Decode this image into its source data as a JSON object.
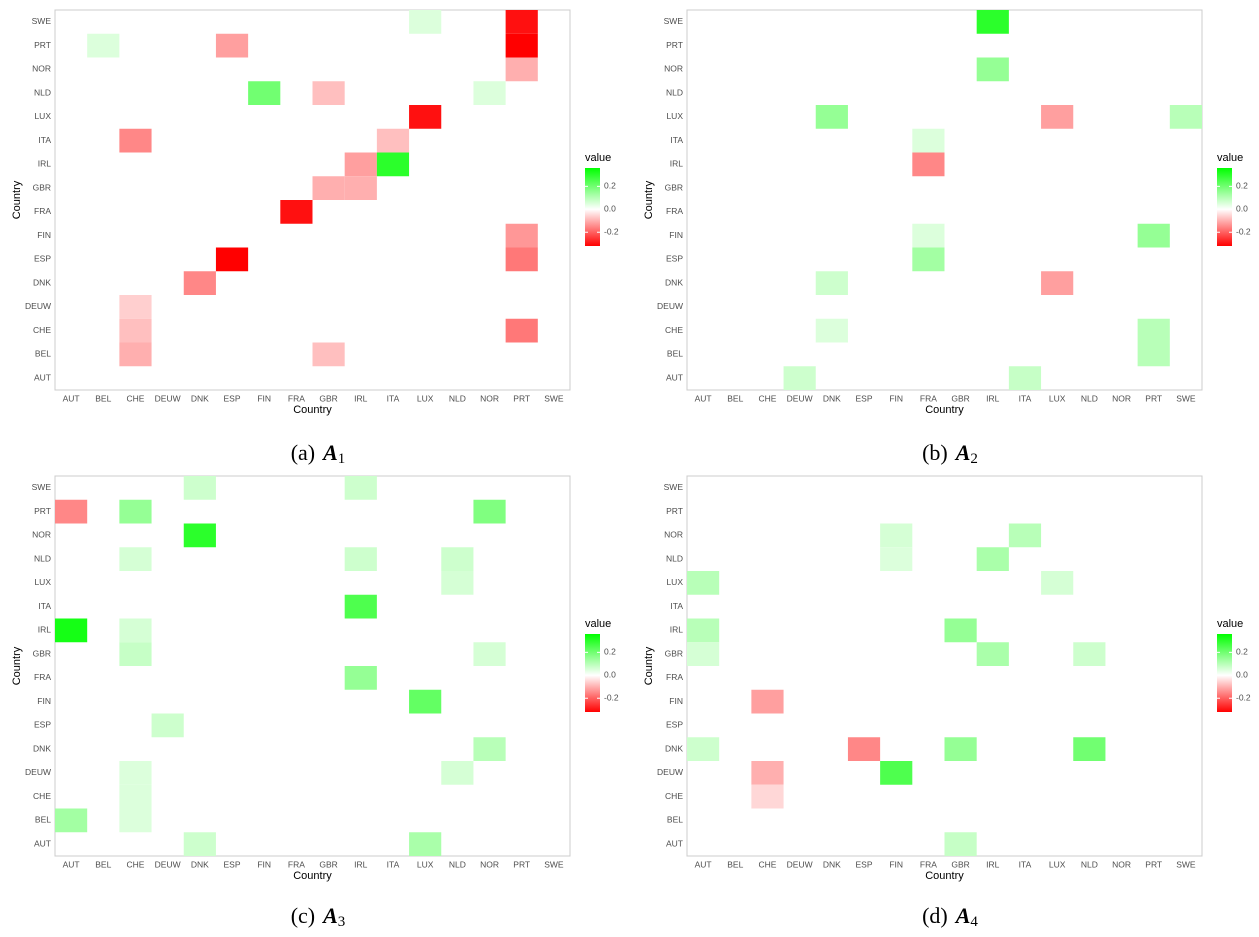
{
  "chart_data": [
    {
      "type": "heatmap",
      "caption": {
        "label": "(a)",
        "symbol": "A",
        "subscript": "1"
      },
      "xlabel": "Country",
      "ylabel": "Country",
      "legend_title": "value",
      "categories": [
        "AUT",
        "BEL",
        "CHE",
        "DEUW",
        "DNK",
        "ESP",
        "FIN",
        "FRA",
        "GBR",
        "IRL",
        "ITA",
        "LUX",
        "NLD",
        "NOR",
        "PRT",
        "SWE"
      ],
      "zlim": [
        -0.32,
        0.36
      ],
      "zticks": [
        0.2,
        {
          "value": 0,
          "label": "0.0"
        },
        -0.2
      ],
      "colors": {
        "low": "#ff0000",
        "mid": "#ffffff",
        "high": "#00ff00"
      },
      "cells": [
        {
          "x": "LUX",
          "y": "SWE",
          "value": 0.05
        },
        {
          "x": "PRT",
          "y": "SWE",
          "value": -0.3
        },
        {
          "x": "BEL",
          "y": "PRT",
          "value": 0.05
        },
        {
          "x": "ESP",
          "y": "PRT",
          "value": -0.12
        },
        {
          "x": "PRT",
          "y": "PRT",
          "value": -0.35
        },
        {
          "x": "PRT",
          "y": "NOR",
          "value": -0.1
        },
        {
          "x": "FIN",
          "y": "NLD",
          "value": 0.2
        },
        {
          "x": "GBR",
          "y": "NLD",
          "value": -0.08
        },
        {
          "x": "NOR",
          "y": "NLD",
          "value": 0.05
        },
        {
          "x": "LUX",
          "y": "LUX",
          "value": -0.3
        },
        {
          "x": "CHE",
          "y": "ITA",
          "value": -0.15
        },
        {
          "x": "ITA",
          "y": "ITA",
          "value": -0.08
        },
        {
          "x": "IRL",
          "y": "IRL",
          "value": -0.12
        },
        {
          "x": "ITA",
          "y": "IRL",
          "value": 0.3
        },
        {
          "x": "GBR",
          "y": "GBR",
          "value": -0.1
        },
        {
          "x": "IRL",
          "y": "GBR",
          "value": -0.1
        },
        {
          "x": "FRA",
          "y": "FRA",
          "value": -0.3
        },
        {
          "x": "PRT",
          "y": "FIN",
          "value": -0.13
        },
        {
          "x": "ESP",
          "y": "ESP",
          "value": -0.35
        },
        {
          "x": "PRT",
          "y": "ESP",
          "value": -0.17
        },
        {
          "x": "DNK",
          "y": "DNK",
          "value": -0.15
        },
        {
          "x": "CHE",
          "y": "DEUW",
          "value": -0.06
        },
        {
          "x": "CHE",
          "y": "CHE",
          "value": -0.08
        },
        {
          "x": "PRT",
          "y": "CHE",
          "value": -0.17
        },
        {
          "x": "CHE",
          "y": "BEL",
          "value": -0.1
        },
        {
          "x": "GBR",
          "y": "BEL",
          "value": -0.08
        }
      ]
    },
    {
      "type": "heatmap",
      "caption": {
        "label": "(b)",
        "symbol": "A",
        "subscript": "2"
      },
      "xlabel": "Country",
      "ylabel": "Country",
      "legend_title": "value",
      "categories": [
        "AUT",
        "BEL",
        "CHE",
        "DEUW",
        "DNK",
        "ESP",
        "FIN",
        "FRA",
        "GBR",
        "IRL",
        "ITA",
        "LUX",
        "NLD",
        "NOR",
        "PRT",
        "SWE"
      ],
      "zlim": [
        -0.32,
        0.36
      ],
      "zticks": [
        0.2,
        {
          "value": 0,
          "label": "0.0"
        },
        -0.2
      ],
      "colors": {
        "low": "#ff0000",
        "mid": "#ffffff",
        "high": "#00ff00"
      },
      "cells": [
        {
          "x": "IRL",
          "y": "SWE",
          "value": 0.3
        },
        {
          "x": "IRL",
          "y": "NOR",
          "value": 0.15
        },
        {
          "x": "DNK",
          "y": "LUX",
          "value": 0.15
        },
        {
          "x": "LUX",
          "y": "LUX",
          "value": -0.12
        },
        {
          "x": "SWE",
          "y": "LUX",
          "value": 0.1
        },
        {
          "x": "FRA",
          "y": "ITA",
          "value": 0.05
        },
        {
          "x": "FRA",
          "y": "IRL",
          "value": -0.15
        },
        {
          "x": "FRA",
          "y": "FIN",
          "value": 0.05
        },
        {
          "x": "PRT",
          "y": "FIN",
          "value": 0.15
        },
        {
          "x": "FRA",
          "y": "ESP",
          "value": 0.13
        },
        {
          "x": "DNK",
          "y": "DNK",
          "value": 0.07
        },
        {
          "x": "LUX",
          "y": "DNK",
          "value": -0.12
        },
        {
          "x": "DNK",
          "y": "CHE",
          "value": 0.05
        },
        {
          "x": "PRT",
          "y": "CHE",
          "value": 0.1
        },
        {
          "x": "PRT",
          "y": "BEL",
          "value": 0.1
        },
        {
          "x": "DEUW",
          "y": "AUT",
          "value": 0.07
        },
        {
          "x": "ITA",
          "y": "AUT",
          "value": 0.08
        }
      ]
    },
    {
      "type": "heatmap",
      "caption": {
        "label": "(c)",
        "symbol": "A",
        "subscript": "3"
      },
      "xlabel": "Country",
      "ylabel": "Country",
      "legend_title": "value",
      "categories": [
        "AUT",
        "BEL",
        "CHE",
        "DEUW",
        "DNK",
        "ESP",
        "FIN",
        "FRA",
        "GBR",
        "IRL",
        "ITA",
        "LUX",
        "NLD",
        "NOR",
        "PRT",
        "SWE"
      ],
      "zlim": [
        -0.32,
        0.36
      ],
      "zticks": [
        0.2,
        {
          "value": 0,
          "label": "0.0"
        },
        -0.2
      ],
      "colors": {
        "low": "#ff0000",
        "mid": "#ffffff",
        "high": "#00ff00"
      },
      "cells": [
        {
          "x": "DNK",
          "y": "SWE",
          "value": 0.07
        },
        {
          "x": "IRL",
          "y": "SWE",
          "value": 0.07
        },
        {
          "x": "AUT",
          "y": "PRT",
          "value": -0.15
        },
        {
          "x": "CHE",
          "y": "PRT",
          "value": 0.15
        },
        {
          "x": "NOR",
          "y": "PRT",
          "value": 0.18
        },
        {
          "x": "DNK",
          "y": "NOR",
          "value": 0.3
        },
        {
          "x": "CHE",
          "y": "NLD",
          "value": 0.06
        },
        {
          "x": "IRL",
          "y": "NLD",
          "value": 0.07
        },
        {
          "x": "NLD",
          "y": "NLD",
          "value": 0.07
        },
        {
          "x": "NLD",
          "y": "LUX",
          "value": 0.06
        },
        {
          "x": "IRL",
          "y": "ITA",
          "value": 0.25
        },
        {
          "x": "AUT",
          "y": "IRL",
          "value": 0.33
        },
        {
          "x": "CHE",
          "y": "IRL",
          "value": 0.06
        },
        {
          "x": "CHE",
          "y": "GBR",
          "value": 0.08
        },
        {
          "x": "NOR",
          "y": "GBR",
          "value": 0.06
        },
        {
          "x": "IRL",
          "y": "FRA",
          "value": 0.15
        },
        {
          "x": "LUX",
          "y": "FIN",
          "value": 0.22
        },
        {
          "x": "DEUW",
          "y": "ESP",
          "value": 0.07
        },
        {
          "x": "NOR",
          "y": "DNK",
          "value": 0.1
        },
        {
          "x": "CHE",
          "y": "DEUW",
          "value": 0.05
        },
        {
          "x": "NLD",
          "y": "DEUW",
          "value": 0.06
        },
        {
          "x": "CHE",
          "y": "CHE",
          "value": 0.05
        },
        {
          "x": "AUT",
          "y": "BEL",
          "value": 0.13
        },
        {
          "x": "CHE",
          "y": "BEL",
          "value": 0.05
        },
        {
          "x": "DNK",
          "y": "AUT",
          "value": 0.07
        },
        {
          "x": "LUX",
          "y": "AUT",
          "value": 0.12
        }
      ]
    },
    {
      "type": "heatmap",
      "caption": {
        "label": "(d)",
        "symbol": "A",
        "subscript": "4"
      },
      "xlabel": "Country",
      "ylabel": "Country",
      "legend_title": "value",
      "categories": [
        "AUT",
        "BEL",
        "CHE",
        "DEUW",
        "DNK",
        "ESP",
        "FIN",
        "FRA",
        "GBR",
        "IRL",
        "ITA",
        "LUX",
        "NLD",
        "NOR",
        "PRT",
        "SWE"
      ],
      "zlim": [
        -0.32,
        0.36
      ],
      "zticks": [
        0.2,
        {
          "value": 0,
          "label": "0.0"
        },
        -0.2
      ],
      "colors": {
        "low": "#ff0000",
        "mid": "#ffffff",
        "high": "#00ff00"
      },
      "cells": [
        {
          "x": "FIN",
          "y": "NOR",
          "value": 0.06
        },
        {
          "x": "ITA",
          "y": "NOR",
          "value": 0.1
        },
        {
          "x": "FIN",
          "y": "NLD",
          "value": 0.05
        },
        {
          "x": "IRL",
          "y": "NLD",
          "value": 0.12
        },
        {
          "x": "AUT",
          "y": "LUX",
          "value": 0.1
        },
        {
          "x": "LUX",
          "y": "LUX",
          "value": 0.06
        },
        {
          "x": "AUT",
          "y": "IRL",
          "value": 0.1
        },
        {
          "x": "GBR",
          "y": "IRL",
          "value": 0.15
        },
        {
          "x": "AUT",
          "y": "GBR",
          "value": 0.06
        },
        {
          "x": "IRL",
          "y": "GBR",
          "value": 0.12
        },
        {
          "x": "NLD",
          "y": "GBR",
          "value": 0.07
        },
        {
          "x": "CHE",
          "y": "FIN",
          "value": -0.12
        },
        {
          "x": "AUT",
          "y": "DNK",
          "value": 0.07
        },
        {
          "x": "ESP",
          "y": "DNK",
          "value": -0.15
        },
        {
          "x": "GBR",
          "y": "DNK",
          "value": 0.15
        },
        {
          "x": "NLD",
          "y": "DNK",
          "value": 0.2
        },
        {
          "x": "CHE",
          "y": "DEUW",
          "value": -0.1
        },
        {
          "x": "FIN",
          "y": "DEUW",
          "value": 0.25
        },
        {
          "x": "CHE",
          "y": "CHE",
          "value": -0.05
        },
        {
          "x": "GBR",
          "y": "AUT",
          "value": 0.08
        }
      ]
    }
  ]
}
